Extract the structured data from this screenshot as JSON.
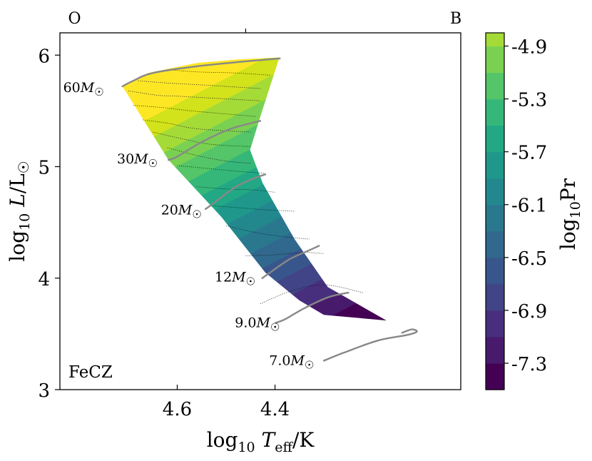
{
  "chart_data": {
    "type": "contour",
    "title": "",
    "xlabel": "log₁₀ T_eff/K",
    "ylabel": "log₁₀ L/L☉",
    "xlim": [
      4.84,
      4.02
    ],
    "ylim": [
      3.0,
      6.2
    ],
    "x_axis_inverted": true,
    "x_ticks": [
      4.6,
      4.4
    ],
    "x_tick_labels": [
      "4.6",
      "4.4"
    ],
    "y_ticks": [
      3,
      4,
      5,
      6
    ],
    "y_tick_labels": [
      "3",
      "4",
      "5",
      "6"
    ],
    "top_labels": [
      {
        "text": "O",
        "x": 4.81
      },
      {
        "text": "B",
        "x": 4.03
      }
    ],
    "top_tick": 4.46,
    "panel_label": "FeCZ",
    "colorbar": {
      "label": "log₁₀Pr",
      "range": [
        -7.5,
        -4.8
      ],
      "ticks": [
        -4.9,
        -5.3,
        -5.7,
        -6.1,
        -6.5,
        -6.9,
        -7.3
      ],
      "tick_labels": [
        "-4.9",
        "-5.3",
        "-5.7",
        "-6.1",
        "-6.5",
        "-6.9",
        "-7.3"
      ],
      "levels": [
        -7.5,
        -7.3,
        -7.1,
        -6.9,
        -6.7,
        -6.5,
        -6.3,
        -6.1,
        -5.9,
        -5.7,
        -5.5,
        -5.3,
        -5.1,
        -4.9,
        -4.8
      ],
      "colors": [
        "#440154",
        "#481A6C",
        "#472F7D",
        "#414487",
        "#39568C",
        "#31688E",
        "#2A788E",
        "#23888E",
        "#1F988B",
        "#22A884",
        "#35B779",
        "#54C568",
        "#7AD151",
        "#A5DB36",
        "#D2E21B",
        "#FDE725"
      ]
    },
    "region_boundary": [
      [
        4.712,
        5.72
      ],
      [
        4.618,
        5.06
      ],
      [
        4.51,
        4.55
      ],
      [
        4.42,
        4.05
      ],
      [
        4.35,
        3.8
      ],
      [
        4.3,
        3.67
      ],
      [
        4.172,
        3.62
      ],
      [
        4.292,
        3.92
      ],
      [
        4.36,
        4.35
      ],
      [
        4.425,
        4.85
      ],
      [
        4.451,
        5.15
      ],
      [
        4.43,
        5.45
      ],
      [
        4.391,
        5.98
      ],
      [
        4.48,
        5.96
      ],
      [
        4.56,
        5.93
      ],
      [
        4.66,
        5.84
      ]
    ],
    "contour_lines": [
      {
        "level": -7.3,
        "points": [
          [
            4.43,
            3.77
          ],
          [
            4.37,
            3.88
          ],
          [
            4.3,
            3.94
          ],
          [
            4.22,
            3.87
          ]
        ]
      },
      {
        "level": -7.1,
        "points": [
          [
            4.46,
            4.2
          ],
          [
            4.4,
            4.21
          ],
          [
            4.34,
            4.23
          ],
          [
            4.3,
            4.22
          ]
        ]
      },
      {
        "level": -6.9,
        "points": [
          [
            4.5,
            4.47
          ],
          [
            4.44,
            4.41
          ],
          [
            4.38,
            4.37
          ],
          [
            4.33,
            4.35
          ]
        ]
      },
      {
        "level": -6.7,
        "points": [
          [
            4.53,
            4.65
          ],
          [
            4.47,
            4.63
          ],
          [
            4.41,
            4.61
          ],
          [
            4.36,
            4.6
          ]
        ]
      },
      {
        "level": -6.5,
        "points": [
          [
            4.56,
            4.82
          ],
          [
            4.5,
            4.8
          ],
          [
            4.44,
            4.79
          ],
          [
            4.4,
            4.77
          ]
        ]
      },
      {
        "level": -6.3,
        "points": [
          [
            4.6,
            5.01
          ],
          [
            4.53,
            4.98
          ],
          [
            4.48,
            4.96
          ],
          [
            4.42,
            4.94
          ]
        ]
      },
      {
        "level": -6.1,
        "points": [
          [
            4.62,
            5.17
          ],
          [
            4.56,
            5.1
          ],
          [
            4.5,
            5.05
          ],
          [
            4.45,
            5.03
          ]
        ]
      },
      {
        "level": -5.9,
        "points": [
          [
            4.65,
            5.31
          ],
          [
            4.59,
            5.25
          ],
          [
            4.53,
            5.2
          ],
          [
            4.45,
            5.18
          ]
        ]
      },
      {
        "level": -5.7,
        "points": [
          [
            4.67,
            5.42
          ],
          [
            4.62,
            5.39
          ],
          [
            4.56,
            5.34
          ],
          [
            4.45,
            5.31
          ]
        ]
      },
      {
        "level": -5.5,
        "points": [
          [
            4.69,
            5.55
          ],
          [
            4.63,
            5.53
          ],
          [
            4.57,
            5.5
          ],
          [
            4.44,
            5.45
          ]
        ]
      },
      {
        "level": -5.3,
        "points": [
          [
            4.7,
            5.68
          ],
          [
            4.64,
            5.64
          ],
          [
            4.59,
            5.63
          ],
          [
            4.43,
            5.59
          ]
        ]
      },
      {
        "level": -5.1,
        "points": [
          [
            4.68,
            5.77
          ],
          [
            4.62,
            5.75
          ],
          [
            4.54,
            5.73
          ],
          [
            4.43,
            5.7
          ]
        ]
      },
      {
        "level": -4.9,
        "points": [
          [
            4.62,
            5.87
          ],
          [
            4.56,
            5.85
          ],
          [
            4.48,
            5.84
          ],
          [
            4.41,
            5.82
          ]
        ]
      }
    ],
    "series": [
      {
        "name": "60M☉",
        "label_pos": [
          4.75,
          5.67
        ],
        "points": [
          [
            4.712,
            5.72
          ],
          [
            4.69,
            5.77
          ],
          [
            4.65,
            5.84
          ],
          [
            4.56,
            5.9
          ],
          [
            4.47,
            5.94
          ],
          [
            4.39,
            5.97
          ]
        ]
      },
      {
        "name": "30M☉",
        "label_pos": [
          4.64,
          5.03
        ],
        "points": [
          [
            4.618,
            5.06
          ],
          [
            4.6,
            5.09
          ],
          [
            4.55,
            5.22
          ],
          [
            4.49,
            5.34
          ],
          [
            4.43,
            5.41
          ]
        ]
      },
      {
        "name": "20M☉",
        "label_pos": [
          4.55,
          4.57
        ],
        "points": [
          [
            4.542,
            4.62
          ],
          [
            4.52,
            4.69
          ],
          [
            4.48,
            4.82
          ],
          [
            4.44,
            4.9
          ],
          [
            4.42,
            4.93
          ]
        ]
      },
      {
        "name": "12M☉",
        "label_pos": [
          4.44,
          3.97
        ],
        "points": [
          [
            4.426,
            4.0
          ],
          [
            4.41,
            4.05
          ],
          [
            4.37,
            4.17
          ],
          [
            4.33,
            4.25
          ],
          [
            4.31,
            4.29
          ]
        ]
      },
      {
        "name": "9.0M☉",
        "label_pos": [
          4.39,
          3.56
        ],
        "points": [
          [
            4.398,
            3.6
          ],
          [
            4.38,
            3.63
          ],
          [
            4.34,
            3.73
          ],
          [
            4.29,
            3.83
          ],
          [
            4.25,
            3.87
          ]
        ]
      },
      {
        "name": "7.0M☉",
        "label_pos": [
          4.32,
          3.22
        ],
        "points": [
          [
            4.3,
            3.26
          ],
          [
            4.26,
            3.33
          ],
          [
            4.19,
            3.44
          ],
          [
            4.13,
            3.49
          ],
          [
            4.11,
            3.52
          ],
          [
            4.12,
            3.54
          ],
          [
            4.14,
            3.51
          ]
        ]
      }
    ]
  }
}
